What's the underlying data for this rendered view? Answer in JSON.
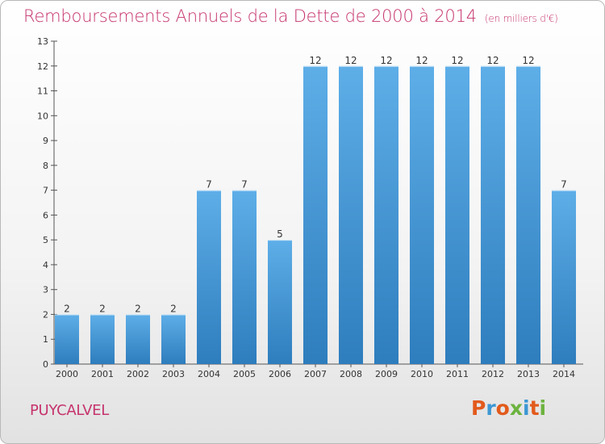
{
  "chart_data": {
    "type": "bar",
    "title": "Remboursements Annuels de la Dette de 2000 à 2014",
    "unit": "(en milliers d'€)",
    "categories": [
      "2000",
      "2001",
      "2002",
      "2003",
      "2004",
      "2005",
      "2006",
      "2007",
      "2008",
      "2009",
      "2010",
      "2011",
      "2012",
      "2013",
      "2014"
    ],
    "values": [
      2,
      2,
      2,
      2,
      7,
      7,
      5,
      12,
      12,
      12,
      12,
      12,
      12,
      12,
      7
    ],
    "ylim": [
      0,
      13
    ],
    "yticks": [
      0,
      1,
      2,
      3,
      4,
      5,
      6,
      7,
      8,
      9,
      10,
      11,
      12,
      13
    ],
    "grid": false,
    "bar_color_top": "#5eaee8",
    "bar_color_bottom": "#2e7dbd"
  },
  "footer": {
    "town": "PUYCALVEL",
    "logo": "Proxiti",
    "logo_colors": [
      "#e25a1c",
      "#3c97d3",
      "#e25a1c",
      "#6cb33f",
      "#3c97d3",
      "#e25a1c",
      "#6cb33f"
    ]
  },
  "colors": {
    "accent": "#c6336d"
  }
}
